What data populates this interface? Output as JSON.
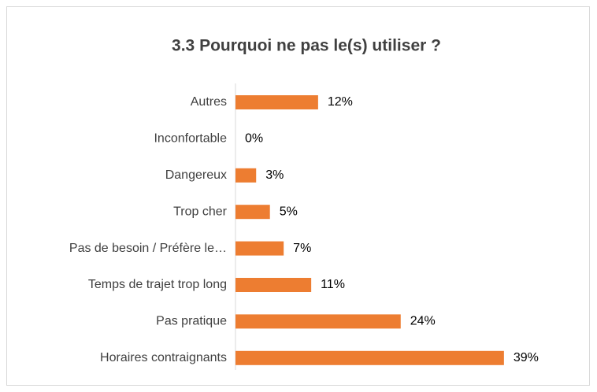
{
  "chart_data": {
    "type": "bar",
    "orientation": "horizontal",
    "title": "3.3 Pourquoi ne pas le(s) utiliser ?",
    "categories": [
      "Autres",
      "Inconfortable",
      "Dangereux",
      "Trop cher",
      "Pas de besoin / Préfère le…",
      "Temps de trajet trop long",
      "Pas pratique",
      "Horaires contraignants"
    ],
    "values": [
      12,
      0,
      3,
      5,
      7,
      11,
      24,
      39
    ],
    "value_labels": [
      "12%",
      "0%",
      "3%",
      "5%",
      "7%",
      "11%",
      "24%",
      "39%"
    ],
    "color": "#ed7d31"
  }
}
